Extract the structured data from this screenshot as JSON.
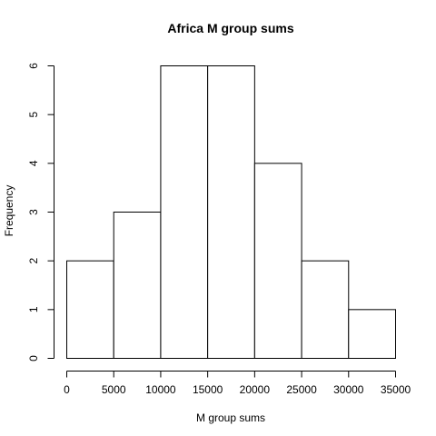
{
  "chart_data": {
    "type": "bar",
    "title": "Africa M group sums",
    "xlabel": "M group sums",
    "ylabel": "Frequency",
    "bins": [
      {
        "from": 0,
        "to": 5000,
        "count": 2
      },
      {
        "from": 5000,
        "to": 10000,
        "count": 3
      },
      {
        "from": 10000,
        "to": 15000,
        "count": 6
      },
      {
        "from": 15000,
        "to": 20000,
        "count": 6
      },
      {
        "from": 20000,
        "to": 25000,
        "count": 4
      },
      {
        "from": 25000,
        "to": 30000,
        "count": 2
      },
      {
        "from": 30000,
        "to": 35000,
        "count": 1
      }
    ],
    "xlim": [
      0,
      35000
    ],
    "ylim": [
      0,
      6
    ],
    "x_ticks": [
      0,
      5000,
      10000,
      15000,
      20000,
      25000,
      30000,
      35000
    ],
    "y_ticks": [
      0,
      1,
      2,
      3,
      4,
      5,
      6
    ],
    "grid": false,
    "legend": "none"
  }
}
